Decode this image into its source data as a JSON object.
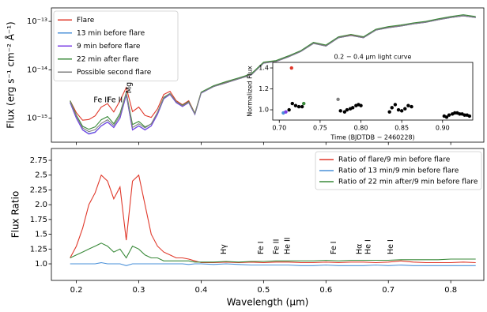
{
  "chart_data": [
    {
      "type": "line",
      "ylabel": "Flux (erg s⁻¹ cm⁻² Å⁻¹)",
      "yscale": "log",
      "xlim": [
        0.16,
        0.853
      ],
      "xticks": [
        0.2,
        0.3,
        0.4,
        0.5,
        0.6,
        0.7,
        0.8
      ],
      "ylim": [
        3.2e-16,
        1.9e-13
      ],
      "yticks": [
        {
          "value": 1e-15,
          "label": "10⁻¹⁵"
        },
        {
          "value": 1e-14,
          "label": "10⁻¹⁴"
        },
        {
          "value": 1e-13,
          "label": "10⁻¹³"
        }
      ],
      "legend": "upper left",
      "x": [
        0.19,
        0.2,
        0.21,
        0.22,
        0.23,
        0.24,
        0.25,
        0.26,
        0.27,
        0.28,
        0.29,
        0.3,
        0.31,
        0.32,
        0.33,
        0.34,
        0.35,
        0.36,
        0.37,
        0.38,
        0.39,
        0.4,
        0.42,
        0.44,
        0.46,
        0.48,
        0.5,
        0.52,
        0.54,
        0.56,
        0.58,
        0.6,
        0.62,
        0.64,
        0.66,
        0.68,
        0.7,
        0.72,
        0.74,
        0.76,
        0.78,
        0.8,
        0.82,
        0.84
      ],
      "series": [
        {
          "name": "Flare",
          "color": "#e0392b",
          "values": [
            2.3e-15,
            1.3e-15,
            9.1e-16,
            9.4e-16,
            1.12e-15,
            1.7e-15,
            2e-15,
            1.35e-15,
            2.3e-15,
            4.3e-15,
            1.37e-15,
            1.7e-15,
            1.14e-15,
            1.04e-15,
            1.56e-15,
            3.1e-15,
            3.6e-15,
            2.3e-15,
            1.9e-15,
            2.3e-15,
            1.26e-15,
            3.4e-15,
            4.6e-15,
            5.5e-15,
            6.6e-15,
            8e-15,
            1.4e-14,
            1.5e-14,
            1.9e-14,
            2.45e-14,
            3.55e-14,
            3.15e-14,
            4.7e-14,
            5.2e-14,
            4.7e-14,
            6.7e-14,
            7.5e-14,
            8.1e-14,
            9e-14,
            9.7e-14,
            1.09e-13,
            1.21e-13,
            1.31e-13,
            1.21e-13
          ]
        },
        {
          "name": "13 min before flare",
          "color": "#4a90d9",
          "values": [
            2.1e-15,
            1e-15,
            5.8e-16,
            4.8e-16,
            5.2e-16,
            7e-16,
            8.4e-16,
            6.5e-16,
            1e-15,
            3e-15,
            5.8e-16,
            7e-16,
            5.8e-16,
            7e-16,
            1.2e-15,
            2.5e-15,
            3.1e-15,
            2.1e-15,
            1.75e-15,
            2.1e-15,
            1.2e-15,
            3.3e-15,
            4.5e-15,
            5.4e-15,
            6.5e-15,
            7.8e-15,
            1.37e-14,
            1.48e-14,
            1.85e-14,
            2.4e-14,
            3.5e-14,
            3.1e-14,
            4.6e-14,
            5.1e-14,
            4.6e-14,
            6.6e-14,
            7.4e-14,
            8e-14,
            8.9e-14,
            9.6e-14,
            1.08e-13,
            1.2e-13,
            1.3e-13,
            1.2e-13
          ]
        },
        {
          "name": "9 min before flare",
          "color": "#7b3fe4",
          "values": [
            2.1e-15,
            1e-15,
            5.7e-16,
            4.7e-16,
            5.1e-16,
            6.9e-16,
            8.3e-16,
            6.4e-16,
            1e-15,
            3.1e-15,
            5.7e-16,
            6.9e-16,
            5.7e-16,
            6.9e-16,
            1.2e-15,
            2.55e-15,
            3.1e-15,
            2.1e-15,
            1.75e-15,
            2.1e-15,
            1.2e-15,
            3.3e-15,
            4.5e-15,
            5.4e-15,
            6.5e-15,
            7.8e-15,
            1.37e-14,
            1.48e-14,
            1.85e-14,
            2.4e-14,
            3.5e-14,
            3.1e-14,
            4.6e-14,
            5.1e-14,
            4.6e-14,
            6.6e-14,
            7.4e-14,
            8e-14,
            8.9e-14,
            9.6e-14,
            1.08e-13,
            1.2e-13,
            1.3e-13,
            1.2e-13
          ]
        },
        {
          "name": "22 min after flare",
          "color": "#3a8a3a",
          "values": [
            2.3e-15,
            1.15e-15,
            6.8e-16,
            5.9e-16,
            6.6e-16,
            9.3e-16,
            1.08e-15,
            7.7e-16,
            1.25e-15,
            3.4e-15,
            7.4e-16,
            8.6e-16,
            6.6e-16,
            7.6e-16,
            1.32e-15,
            2.7e-15,
            3.25e-15,
            2.2e-15,
            1.84e-15,
            2.2e-15,
            1.26e-15,
            3.45e-15,
            4.7e-15,
            5.7e-15,
            6.8e-15,
            8.2e-15,
            1.44e-14,
            1.55e-14,
            1.94e-14,
            2.5e-14,
            3.7e-14,
            3.25e-14,
            4.8e-14,
            5.4e-14,
            4.8e-14,
            6.9e-14,
            7.8e-14,
            8.4e-14,
            9.3e-14,
            1e-13,
            1.13e-13,
            1.26e-13,
            1.37e-13,
            1.26e-13
          ]
        },
        {
          "name": "Possible second flare",
          "color": "#808080",
          "values": [
            2.2e-15,
            1.1e-15,
            6.3e-16,
            5.3e-16,
            5.8e-16,
            7.8e-16,
            9.3e-16,
            7.1e-16,
            1.12e-15,
            3.3e-15,
            6.4e-16,
            7.7e-16,
            6.3e-16,
            7.7e-16,
            1.3e-15,
            2.6e-15,
            3.2e-15,
            2.2e-15,
            1.8e-15,
            2.15e-15,
            1.23e-15,
            3.35e-15,
            4.5e-15,
            5.4e-15,
            6.5e-15,
            7.8e-15,
            1.37e-14,
            1.48e-14,
            1.85e-14,
            2.4e-14,
            3.5e-14,
            3.1e-14,
            4.6e-14,
            5.1e-14,
            4.6e-14,
            6.6e-14,
            7.4e-14,
            8e-14,
            8.9e-14,
            9.6e-14,
            1.08e-13,
            1.2e-13,
            1.3e-13,
            1.2e-13
          ]
        }
      ],
      "annotations": [
        {
          "text": "Fe II",
          "x": 0.24,
          "rotated": false
        },
        {
          "text": "Fe II",
          "x": 0.262,
          "rotated": false
        },
        {
          "text": "Mg II",
          "x": 0.28,
          "rotated": true
        }
      ]
    },
    {
      "type": "scatter",
      "title": "0.2 − 0.4 μm light curve",
      "ylabel": "Normalized Flux",
      "xlabel": "Time (BJDTDB − 2460228)",
      "xlim": [
        0.692,
        0.937
      ],
      "xticks": [
        {
          "value": 0.7,
          "label": "0.70"
        },
        {
          "value": 0.75,
          "label": "0.75"
        },
        {
          "value": 0.8,
          "label": "0.80"
        },
        {
          "value": 0.85,
          "label": "0.85"
        },
        {
          "value": 0.9,
          "label": "0.90"
        }
      ],
      "ylim": [
        0.902,
        1.453
      ],
      "yticks": [
        {
          "value": 1.0,
          "label": "1.0"
        },
        1.2,
        1.4
      ],
      "series": [
        {
          "color": "#000000",
          "x": [
            0.712,
            0.716,
            0.72,
            0.724,
            0.728,
            0.775,
            0.78,
            0.783,
            0.787,
            0.79,
            0.794,
            0.797,
            0.8,
            0.835,
            0.838,
            0.842,
            0.846,
            0.85,
            0.854,
            0.858,
            0.862,
            0.902,
            0.905,
            0.908,
            0.912,
            0.915,
            0.918,
            0.921,
            0.924,
            0.927,
            0.93,
            0.933
          ],
          "values": [
            1.0,
            1.06,
            1.04,
            1.03,
            1.03,
            0.99,
            0.98,
            1.0,
            1.01,
            1.02,
            1.04,
            1.05,
            1.04,
            0.98,
            1.02,
            1.05,
            1.0,
            0.99,
            1.01,
            1.04,
            1.03,
            0.94,
            0.93,
            0.95,
            0.96,
            0.97,
            0.97,
            0.96,
            0.96,
            0.95,
            0.95,
            0.94
          ]
        },
        {
          "color": "#4a90d9",
          "x": [
            0.705
          ],
          "values": [
            0.97
          ]
        },
        {
          "color": "#7b3fe4",
          "x": [
            0.708
          ],
          "values": [
            0.98
          ]
        },
        {
          "color": "#e0392b",
          "x": [
            0.715
          ],
          "values": [
            1.4
          ]
        },
        {
          "color": "#3a8a3a",
          "x": [
            0.73
          ],
          "values": [
            1.06
          ]
        },
        {
          "color": "#808080",
          "x": [
            0.772
          ],
          "values": [
            1.1
          ]
        }
      ]
    },
    {
      "type": "line",
      "ylabel": "Flux Ratio",
      "xlabel": "Wavelength (μm)",
      "xlim": [
        0.16,
        0.853
      ],
      "xticks": [
        0.2,
        0.3,
        0.4,
        0.5,
        0.6,
        0.7,
        0.8
      ],
      "ylim": [
        0.72,
        2.95
      ],
      "yticks": [
        {
          "value": 1.0,
          "label": "1.0"
        },
        1.25,
        1.5,
        1.75,
        {
          "value": 2.0,
          "label": "2.0"
        },
        2.25,
        2.5,
        2.75
      ],
      "legend": "upper right",
      "x": [
        0.19,
        0.2,
        0.21,
        0.22,
        0.23,
        0.24,
        0.25,
        0.26,
        0.27,
        0.28,
        0.29,
        0.3,
        0.31,
        0.32,
        0.33,
        0.34,
        0.35,
        0.36,
        0.37,
        0.38,
        0.39,
        0.4,
        0.42,
        0.44,
        0.46,
        0.48,
        0.5,
        0.52,
        0.54,
        0.56,
        0.58,
        0.6,
        0.62,
        0.64,
        0.66,
        0.68,
        0.7,
        0.72,
        0.74,
        0.76,
        0.78,
        0.8,
        0.82,
        0.84
      ],
      "series": [
        {
          "name": "Ratio of flare/9 min before flare",
          "color": "#e0392b",
          "values": [
            1.1,
            1.3,
            1.6,
            2.0,
            2.2,
            2.5,
            2.4,
            2.1,
            2.3,
            1.4,
            2.4,
            2.5,
            2.0,
            1.5,
            1.3,
            1.2,
            1.15,
            1.1,
            1.1,
            1.08,
            1.05,
            1.02,
            1.02,
            1.03,
            1.02,
            1.03,
            1.02,
            1.03,
            1.03,
            1.02,
            1.02,
            1.03,
            1.02,
            1.03,
            1.03,
            1.02,
            1.03,
            1.05,
            1.03,
            1.02,
            1.02,
            1.02,
            1.03,
            1.02
          ]
        },
        {
          "name": "Ratio of 13 min/9 min before flare",
          "color": "#4a90d9",
          "values": [
            1.0,
            1.0,
            1.0,
            1.0,
            1.0,
            1.02,
            1.0,
            1.0,
            1.0,
            0.97,
            1.0,
            1.0,
            1.0,
            1.0,
            1.0,
            1.0,
            1.0,
            1.0,
            1.0,
            0.99,
            1.0,
            1.0,
            0.99,
            1.0,
            0.99,
            0.98,
            0.98,
            0.98,
            0.98,
            0.97,
            0.97,
            0.98,
            0.97,
            0.97,
            0.97,
            0.98,
            0.97,
            0.98,
            0.97,
            0.97,
            0.97,
            0.97,
            0.97,
            0.97
          ]
        },
        {
          "name": "Ratio of 22 min after/9 min before flare",
          "color": "#3a8a3a",
          "values": [
            1.1,
            1.15,
            1.2,
            1.25,
            1.3,
            1.35,
            1.3,
            1.2,
            1.25,
            1.1,
            1.3,
            1.25,
            1.15,
            1.1,
            1.1,
            1.05,
            1.05,
            1.05,
            1.05,
            1.05,
            1.03,
            1.03,
            1.03,
            1.04,
            1.03,
            1.04,
            1.04,
            1.05,
            1.05,
            1.05,
            1.05,
            1.06,
            1.05,
            1.06,
            1.06,
            1.06,
            1.06,
            1.07,
            1.07,
            1.07,
            1.07,
            1.08,
            1.08,
            1.08
          ]
        }
      ],
      "annotations": [
        {
          "text": "Hγ",
          "x": 0.432,
          "rotated": true
        },
        {
          "text": "Fe I",
          "x": 0.491,
          "rotated": true
        },
        {
          "text": "Fe II",
          "x": 0.516,
          "rotated": true
        },
        {
          "text": "He II",
          "x": 0.534,
          "rotated": true
        },
        {
          "text": "Fe I",
          "x": 0.608,
          "rotated": true
        },
        {
          "text": "Hα",
          "x": 0.649,
          "rotated": true
        },
        {
          "text": "He I",
          "x": 0.663,
          "rotated": true
        },
        {
          "text": "He I",
          "x": 0.699,
          "rotated": true
        }
      ]
    }
  ]
}
